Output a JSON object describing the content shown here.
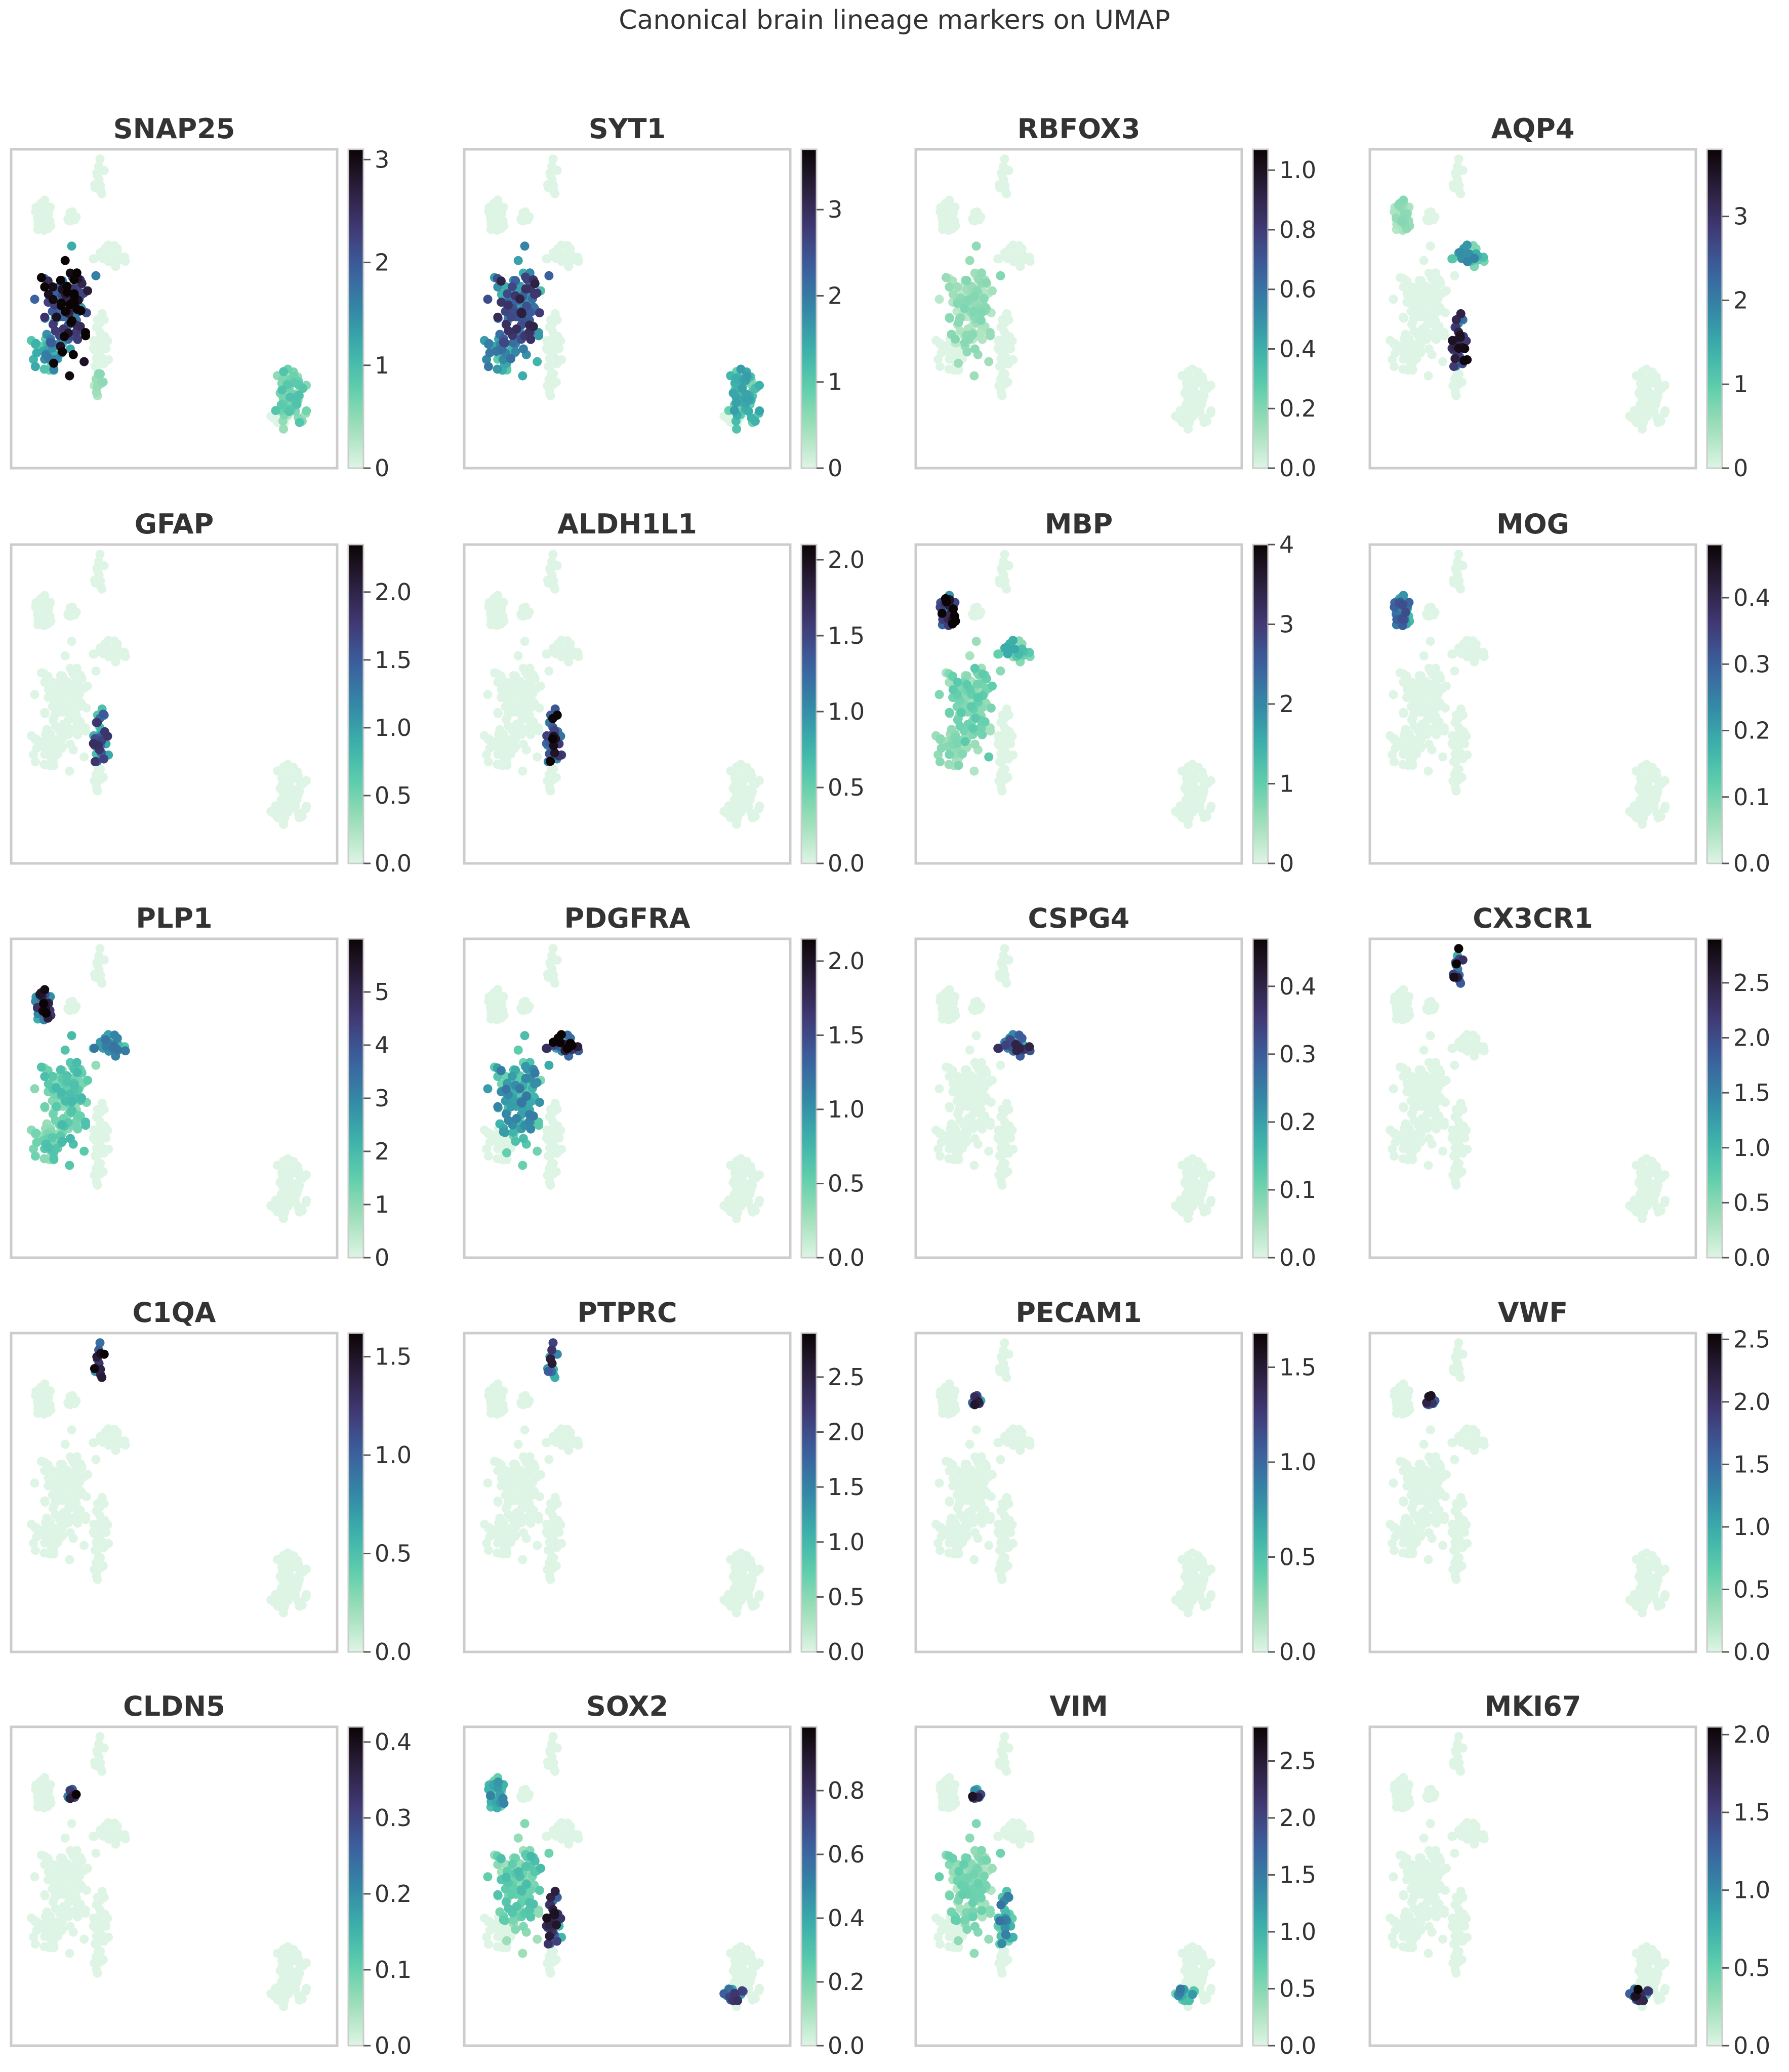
{
  "figure": {
    "title": "Canonical brain lineage markers on UMAP",
    "colormap": [
      "#def5e5",
      "#a0dfb9",
      "#60ceac",
      "#3bb0ab",
      "#3487a6",
      "#3b5f9e",
      "#403a75",
      "#2c1f3d",
      "#0b0405"
    ],
    "frame_color": "#cccccc",
    "text_color": "#333333"
  },
  "chart_data": [
    {
      "type": "scatter",
      "title": "SNAP25",
      "colorbar_ticks": [
        "0",
        "1",
        "2",
        "3"
      ],
      "vmax": 3.1,
      "hot": [
        {
          "region": "exn",
          "value": 2.6
        },
        {
          "region": "inn",
          "value": 1.3
        },
        {
          "region": "right",
          "value": 0.7
        },
        {
          "region": "tail",
          "value": 0.4
        }
      ]
    },
    {
      "type": "scatter",
      "title": "SYT1",
      "colorbar_ticks": [
        "0",
        "1",
        "2",
        "3"
      ],
      "vmax": 3.7,
      "hot": [
        {
          "region": "exn",
          "value": 2.4
        },
        {
          "region": "inn",
          "value": 1.6
        },
        {
          "region": "right",
          "value": 1.2
        }
      ]
    },
    {
      "type": "scatter",
      "title": "RBFOX3",
      "colorbar_ticks": [
        "0.0",
        "0.2",
        "0.4",
        "0.6",
        "0.8",
        "1.0"
      ],
      "vmax": 1.07,
      "hot": [
        {
          "region": "exn",
          "value": 0.15
        }
      ]
    },
    {
      "type": "scatter",
      "title": "AQP4",
      "colorbar_ticks": [
        "0",
        "1",
        "2",
        "3"
      ],
      "vmax": 3.8,
      "hot": [
        {
          "region": "astro",
          "value": 3.0
        },
        {
          "region": "opc",
          "value": 1.5
        },
        {
          "region": "oligo",
          "value": 0.5
        }
      ]
    },
    {
      "type": "scatter",
      "title": "GFAP",
      "colorbar_ticks": [
        "0.0",
        "0.5",
        "1.0",
        "1.5",
        "2.0"
      ],
      "vmax": 2.35,
      "hot": [
        {
          "region": "astro",
          "value": 1.4
        }
      ]
    },
    {
      "type": "scatter",
      "title": "ALDH1L1",
      "colorbar_ticks": [
        "0.0",
        "0.5",
        "1.0",
        "1.5",
        "2.0"
      ],
      "vmax": 2.1,
      "hot": [
        {
          "region": "astro",
          "value": 1.6
        }
      ]
    },
    {
      "type": "scatter",
      "title": "MBP",
      "colorbar_ticks": [
        "0",
        "1",
        "2",
        "3",
        "4"
      ],
      "vmax": 4.0,
      "hot": [
        {
          "region": "oligo",
          "value": 3.4
        },
        {
          "region": "opc",
          "value": 1.2
        },
        {
          "region": "exn",
          "value": 0.8
        },
        {
          "region": "inn",
          "value": 0.6
        }
      ]
    },
    {
      "type": "scatter",
      "title": "MOG",
      "colorbar_ticks": [
        "0.0",
        "0.1",
        "0.2",
        "0.3",
        "0.4"
      ],
      "vmax": 0.48,
      "hot": [
        {
          "region": "oligo",
          "value": 0.25
        }
      ]
    },
    {
      "type": "scatter",
      "title": "PLP1",
      "colorbar_ticks": [
        "0",
        "1",
        "2",
        "3",
        "4",
        "5"
      ],
      "vmax": 6.0,
      "hot": [
        {
          "region": "oligo",
          "value": 4.8
        },
        {
          "region": "opc",
          "value": 2.5
        },
        {
          "region": "exn",
          "value": 1.5
        },
        {
          "region": "inn",
          "value": 1.5
        }
      ]
    },
    {
      "type": "scatter",
      "title": "PDGFRA",
      "colorbar_ticks": [
        "0.0",
        "0.5",
        "1.0",
        "1.5",
        "2.0"
      ],
      "vmax": 2.15,
      "hot": [
        {
          "region": "opc",
          "value": 1.9
        },
        {
          "region": "exn",
          "value": 0.9
        }
      ]
    },
    {
      "type": "scatter",
      "title": "CSPG4",
      "colorbar_ticks": [
        "0.0",
        "0.1",
        "0.2",
        "0.3",
        "0.4"
      ],
      "vmax": 0.47,
      "hot": [
        {
          "region": "opc",
          "value": 0.3
        }
      ]
    },
    {
      "type": "scatter",
      "title": "CX3CR1",
      "colorbar_ticks": [
        "0.0",
        "0.5",
        "1.0",
        "1.5",
        "2.0",
        "2.5"
      ],
      "vmax": 2.9,
      "hot": [
        {
          "region": "micro",
          "value": 2.4
        }
      ]
    },
    {
      "type": "scatter",
      "title": "C1QA",
      "colorbar_ticks": [
        "0.0",
        "0.5",
        "1.0",
        "1.5"
      ],
      "vmax": 1.62,
      "hot": [
        {
          "region": "micro",
          "value": 1.3
        }
      ]
    },
    {
      "type": "scatter",
      "title": "PTPRC",
      "colorbar_ticks": [
        "0.0",
        "0.5",
        "1.0",
        "1.5",
        "2.0",
        "2.5"
      ],
      "vmax": 2.9,
      "hot": [
        {
          "region": "micro",
          "value": 2.0
        }
      ]
    },
    {
      "type": "scatter",
      "title": "PECAM1",
      "colorbar_ticks": [
        "0.0",
        "0.5",
        "1.0",
        "1.5"
      ],
      "vmax": 1.68,
      "hot": [
        {
          "region": "endo",
          "value": 1.2
        }
      ]
    },
    {
      "type": "scatter",
      "title": "VWF",
      "colorbar_ticks": [
        "0.0",
        "0.5",
        "1.0",
        "1.5",
        "2.0",
        "2.5"
      ],
      "vmax": 2.55,
      "hot": [
        {
          "region": "endo",
          "value": 1.8
        }
      ]
    },
    {
      "type": "scatter",
      "title": "CLDN5",
      "colorbar_ticks": [
        "0.0",
        "0.1",
        "0.2",
        "0.3",
        "0.4"
      ],
      "vmax": 0.42,
      "hot": [
        {
          "region": "endo",
          "value": 0.35
        }
      ]
    },
    {
      "type": "scatter",
      "title": "SOX2",
      "colorbar_ticks": [
        "0.2",
        "0.4",
        "0.6",
        "0.8"
      ],
      "colorbar_ticks_low": "0.0",
      "vmax": 1.0,
      "hot": [
        {
          "region": "astro",
          "value": 0.7
        },
        {
          "region": "exn",
          "value": 0.25
        },
        {
          "region": "oligo",
          "value": 0.4
        },
        {
          "region": "rightlow",
          "value": 0.6
        }
      ]
    },
    {
      "type": "scatter",
      "title": "VIM",
      "colorbar_ticks": [
        "0.0",
        "0.5",
        "1.0",
        "1.5",
        "2.0",
        "2.5"
      ],
      "vmax": 2.8,
      "hot": [
        {
          "region": "endo",
          "value": 2.0
        },
        {
          "region": "astro",
          "value": 1.2
        },
        {
          "region": "rightlow",
          "value": 1.2
        },
        {
          "region": "exn",
          "value": 0.5
        }
      ]
    },
    {
      "type": "scatter",
      "title": "MKI67",
      "colorbar_ticks": [
        "0.0",
        "0.5",
        "1.0",
        "1.5",
        "2.0"
      ],
      "vmax": 2.05,
      "hot": [
        {
          "region": "rightlow",
          "value": 1.6
        }
      ]
    }
  ]
}
